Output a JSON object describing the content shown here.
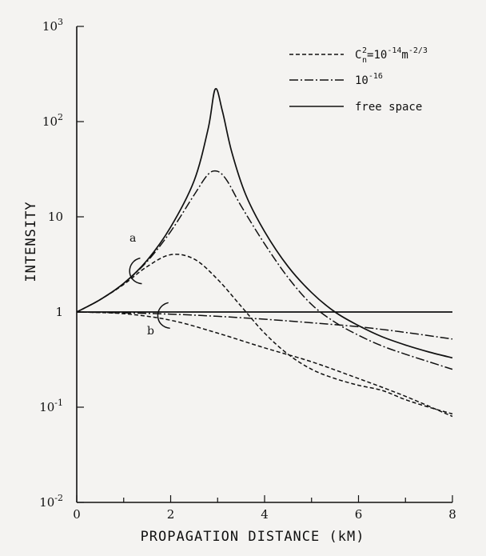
{
  "chart_data": {
    "type": "line",
    "xlabel": "PROPAGATION DISTANCE (kM)",
    "ylabel": "INTENSITY",
    "xlim": [
      0,
      8
    ],
    "ylim": [
      0.01,
      1000
    ],
    "yscale": "log",
    "grid": false,
    "legend_position": "top-right",
    "x_ticks": [
      {
        "value": 0,
        "label": "0"
      },
      {
        "value": 2,
        "label": "2"
      },
      {
        "value": 4,
        "label": "4"
      },
      {
        "value": 6,
        "label": "6"
      },
      {
        "value": 8,
        "label": "8"
      }
    ],
    "y_ticks": [
      {
        "value": 0.01,
        "base": "10",
        "exp": "-2"
      },
      {
        "value": 0.1,
        "base": "10",
        "exp": "-1"
      },
      {
        "value": 1,
        "base": "1",
        "exp": ""
      },
      {
        "value": 10,
        "base": "10",
        "exp": ""
      },
      {
        "value": 100,
        "base": "10",
        "exp": "2"
      },
      {
        "value": 1000,
        "base": "10",
        "exp": "3"
      }
    ],
    "legend": [
      {
        "style": "dashed",
        "label_main": "C",
        "label_sub": "n",
        "label_sup": "2",
        "label_rest": "=10",
        "label_exp1": "-14",
        "label_unit": "m",
        "label_exp2": "-2/3"
      },
      {
        "style": "dashdot",
        "label_main": "10",
        "label_exp1": "-16"
      },
      {
        "style": "solid",
        "label_main": "free space"
      }
    ],
    "annotations": [
      {
        "label": "a"
      },
      {
        "label": "b"
      }
    ],
    "series": [
      {
        "group": "a",
        "style": "solid",
        "x": [
          0,
          0.5,
          1.0,
          1.5,
          2.0,
          2.5,
          2.8,
          2.95,
          3.1,
          3.3,
          3.6,
          4.0,
          4.5,
          5.0,
          5.5,
          6.0,
          6.5,
          7.0,
          7.5,
          8.0
        ],
        "y": [
          1,
          1.35,
          2.0,
          3.5,
          7.8,
          24,
          85,
          220,
          130,
          48,
          17,
          7.0,
          3.0,
          1.6,
          1.0,
          0.72,
          0.55,
          0.45,
          0.38,
          0.33
        ]
      },
      {
        "group": "a",
        "style": "dashdot",
        "x": [
          0,
          0.5,
          1.0,
          1.5,
          2.0,
          2.5,
          2.8,
          3.0,
          3.2,
          3.5,
          4.0,
          4.5,
          5.0,
          5.5,
          6.0,
          6.5,
          7.0,
          7.5,
          8.0
        ],
        "y": [
          1,
          1.35,
          2.0,
          3.4,
          7.0,
          17,
          28,
          30,
          24,
          13,
          5.2,
          2.3,
          1.2,
          0.78,
          0.57,
          0.44,
          0.36,
          0.3,
          0.25
        ]
      },
      {
        "group": "a",
        "style": "dashed",
        "x": [
          0,
          0.5,
          1.0,
          1.5,
          2.0,
          2.5,
          3.0,
          3.5,
          4.0,
          4.5,
          5.0,
          5.5,
          6.0,
          6.5,
          7.0,
          7.5,
          8.0
        ],
        "y": [
          1,
          1.35,
          1.95,
          3.0,
          4.0,
          3.6,
          2.2,
          1.15,
          0.6,
          0.36,
          0.25,
          0.2,
          0.17,
          0.15,
          0.12,
          0.1,
          0.085
        ]
      },
      {
        "group": "b",
        "style": "solid",
        "x": [
          0,
          8
        ],
        "y": [
          1,
          1
        ]
      },
      {
        "group": "b",
        "style": "dashdot",
        "x": [
          0,
          1,
          2,
          3,
          4,
          5,
          6,
          7,
          8
        ],
        "y": [
          1,
          0.98,
          0.95,
          0.9,
          0.84,
          0.77,
          0.7,
          0.61,
          0.52
        ]
      },
      {
        "group": "b",
        "style": "dashed",
        "x": [
          0,
          1,
          2,
          3,
          4,
          5,
          6,
          7,
          8
        ],
        "y": [
          1,
          0.96,
          0.82,
          0.6,
          0.42,
          0.3,
          0.2,
          0.13,
          0.08
        ]
      }
    ]
  }
}
